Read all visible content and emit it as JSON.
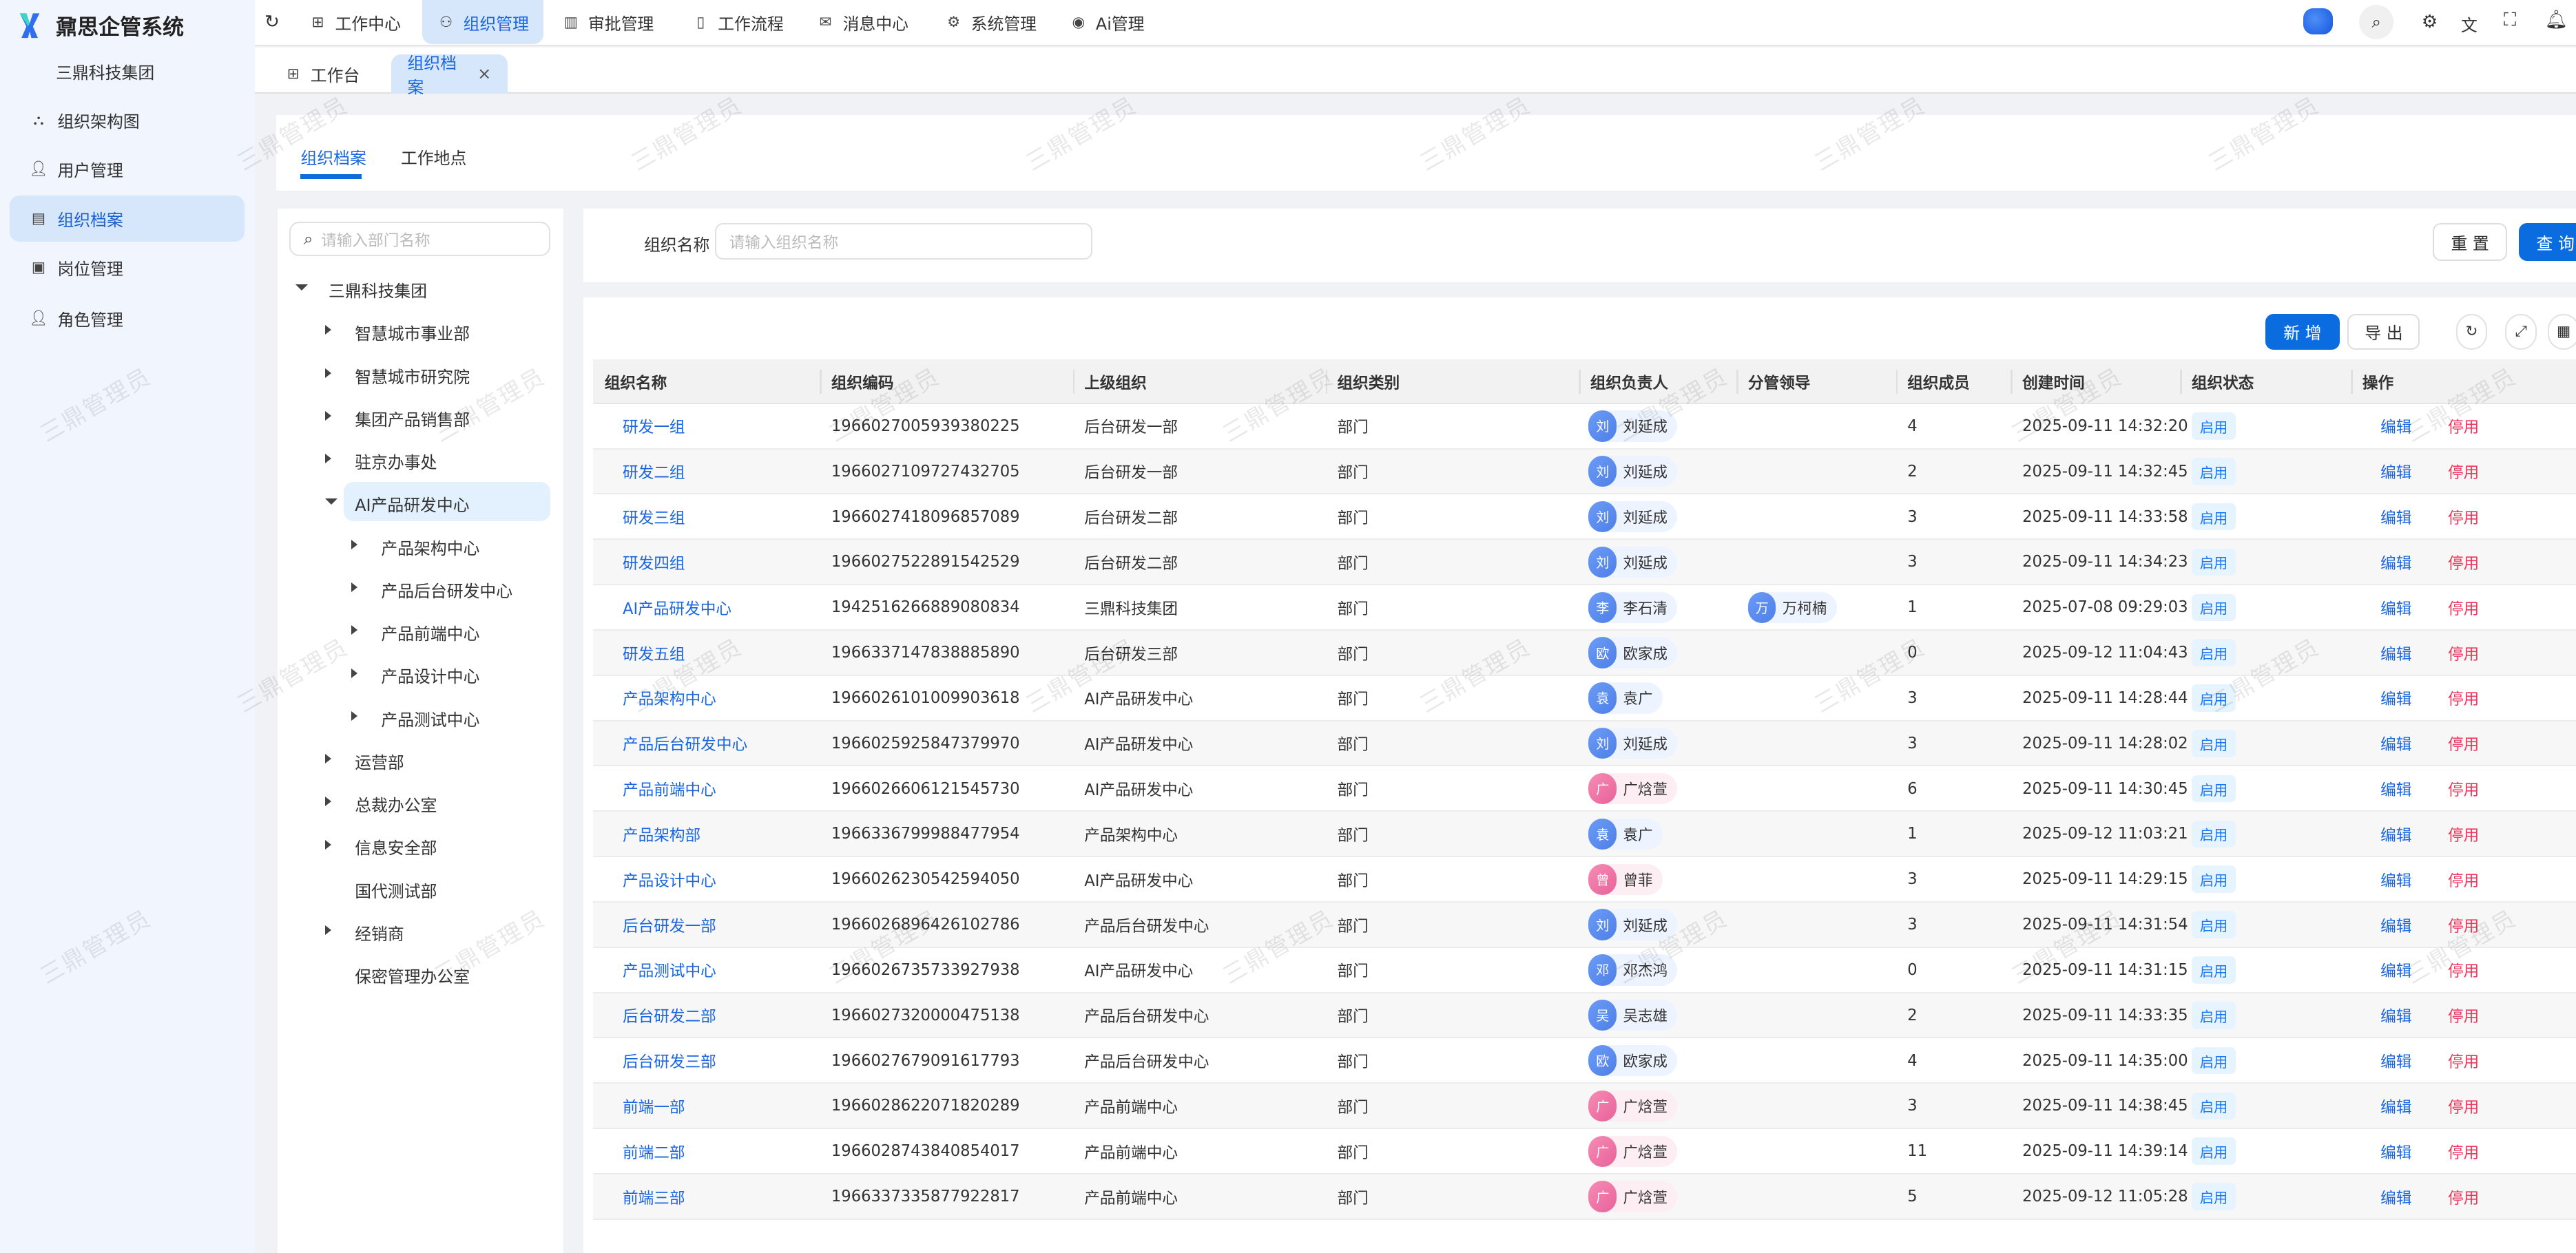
{
  "app": {
    "title": "鼐思企管系统",
    "org": "三鼎科技集团"
  },
  "sidebar": {
    "items": [
      {
        "label": "组织架构图",
        "icon": "org-chart-icon",
        "active": false
      },
      {
        "label": "用户管理",
        "icon": "user-icon",
        "active": false
      },
      {
        "label": "组织档案",
        "icon": "file-icon",
        "active": true
      },
      {
        "label": "岗位管理",
        "icon": "badge-icon",
        "active": false
      },
      {
        "label": "角色管理",
        "icon": "user-icon",
        "active": false
      }
    ]
  },
  "topnav": {
    "items": [
      {
        "label": "工作中心",
        "icon": "grid-icon"
      },
      {
        "label": "组织管理",
        "icon": "user-group-icon",
        "active": true
      },
      {
        "label": "审批管理",
        "icon": "calendar-check-icon"
      },
      {
        "label": "工作流程",
        "icon": "document-icon"
      },
      {
        "label": "消息中心",
        "icon": "mail-icon"
      },
      {
        "label": "系统管理",
        "icon": "gear-icon"
      },
      {
        "label": "Ai管理",
        "icon": "ai-icon"
      }
    ]
  },
  "tabs": [
    {
      "label": "工作台"
    },
    {
      "label": "组织档案",
      "active": true,
      "close": "×"
    }
  ],
  "subtabs": [
    "组织档案",
    "工作地点"
  ],
  "tree": {
    "search_placeholder": "请输入部门名称",
    "nodes": [
      {
        "label": "三鼎科技集团",
        "level": 0,
        "state": "open"
      },
      {
        "label": "智慧城市事业部",
        "level": 1,
        "state": "closed"
      },
      {
        "label": "智慧城市研究院",
        "level": 1,
        "state": "closed"
      },
      {
        "label": "集团产品销售部",
        "level": 1,
        "state": "closed"
      },
      {
        "label": "驻京办事处",
        "level": 1,
        "state": "closed"
      },
      {
        "label": "AI产品研发中心",
        "level": 1,
        "state": "open",
        "selected": true
      },
      {
        "label": "产品架构中心",
        "level": 2,
        "state": "closed"
      },
      {
        "label": "产品后台研发中心",
        "level": 2,
        "state": "closed"
      },
      {
        "label": "产品前端中心",
        "level": 2,
        "state": "closed"
      },
      {
        "label": "产品设计中心",
        "level": 2,
        "state": "closed"
      },
      {
        "label": "产品测试中心",
        "level": 2,
        "state": "closed"
      },
      {
        "label": "运营部",
        "level": 1,
        "state": "closed"
      },
      {
        "label": "总裁办公室",
        "level": 1,
        "state": "closed"
      },
      {
        "label": "信息安全部",
        "level": 1,
        "state": "closed"
      },
      {
        "label": "国代测试部",
        "level": 1,
        "state": "leaf"
      },
      {
        "label": "经销商",
        "level": 1,
        "state": "closed"
      },
      {
        "label": "保密管理办公室",
        "level": 1,
        "state": "leaf"
      }
    ]
  },
  "filter": {
    "label": "组织名称",
    "placeholder": "请输入组织名称",
    "reset": "重 置",
    "query": "查 询"
  },
  "toolbar": {
    "add": "新 增",
    "export": "导 出"
  },
  "table": {
    "columns": [
      "组织名称",
      "组织编码",
      "上级组织",
      "组织类别",
      "组织负责人",
      "分管领导",
      "组织成员",
      "创建时间",
      "组织状态",
      "操作"
    ],
    "actions": {
      "edit": "编辑",
      "disable": "停用"
    },
    "rows": [
      {
        "name": "研发一组",
        "code": "1966027005939380225",
        "parent": "后台研发一部",
        "type": "部门",
        "leader": {
          "initial": "刘",
          "name": "刘延成",
          "color": "blue"
        },
        "supervisor": null,
        "members": "4",
        "created": "2025-09-11 14:32:20",
        "status": "启用"
      },
      {
        "name": "研发二组",
        "code": "1966027109727432705",
        "parent": "后台研发一部",
        "type": "部门",
        "leader": {
          "initial": "刘",
          "name": "刘延成",
          "color": "blue"
        },
        "supervisor": null,
        "members": "2",
        "created": "2025-09-11 14:32:45",
        "status": "启用"
      },
      {
        "name": "研发三组",
        "code": "1966027418096857089",
        "parent": "后台研发二部",
        "type": "部门",
        "leader": {
          "initial": "刘",
          "name": "刘延成",
          "color": "blue"
        },
        "supervisor": null,
        "members": "3",
        "created": "2025-09-11 14:33:58",
        "status": "启用"
      },
      {
        "name": "研发四组",
        "code": "1966027522891542529",
        "parent": "后台研发二部",
        "type": "部门",
        "leader": {
          "initial": "刘",
          "name": "刘延成",
          "color": "blue"
        },
        "supervisor": null,
        "members": "3",
        "created": "2025-09-11 14:34:23",
        "status": "启用"
      },
      {
        "name": "AI产品研发中心",
        "code": "1942516266889080834",
        "parent": "三鼎科技集团",
        "type": "部门",
        "leader": {
          "initial": "李",
          "name": "李石清",
          "color": "blue"
        },
        "supervisor": {
          "initial": "万",
          "name": "万柯楠",
          "color": "blue"
        },
        "members": "1",
        "created": "2025-07-08 09:29:03",
        "status": "启用"
      },
      {
        "name": "研发五组",
        "code": "1966337147838885890",
        "parent": "后台研发三部",
        "type": "部门",
        "leader": {
          "initial": "欧",
          "name": "欧家成",
          "color": "blue"
        },
        "supervisor": null,
        "members": "0",
        "created": "2025-09-12 11:04:43",
        "status": "启用"
      },
      {
        "name": "产品架构中心",
        "code": "1966026101009903618",
        "parent": "AI产品研发中心",
        "type": "部门",
        "leader": {
          "initial": "袁",
          "name": "袁广",
          "color": "blue"
        },
        "supervisor": null,
        "members": "3",
        "created": "2025-09-11 14:28:44",
        "status": "启用"
      },
      {
        "name": "产品后台研发中心",
        "code": "1966025925847379970",
        "parent": "AI产品研发中心",
        "type": "部门",
        "leader": {
          "initial": "刘",
          "name": "刘延成",
          "color": "blue"
        },
        "supervisor": null,
        "members": "3",
        "created": "2025-09-11 14:28:02",
        "status": "启用"
      },
      {
        "name": "产品前端中心",
        "code": "1966026606121545730",
        "parent": "AI产品研发中心",
        "type": "部门",
        "leader": {
          "initial": "广",
          "name": "广焓萱",
          "color": "pink"
        },
        "supervisor": null,
        "members": "6",
        "created": "2025-09-11 14:30:45",
        "status": "启用"
      },
      {
        "name": "产品架构部",
        "code": "1966336799988477954",
        "parent": "产品架构中心",
        "type": "部门",
        "leader": {
          "initial": "袁",
          "name": "袁广",
          "color": "blue"
        },
        "supervisor": null,
        "members": "1",
        "created": "2025-09-12 11:03:21",
        "status": "启用"
      },
      {
        "name": "产品设计中心",
        "code": "1966026230542594050",
        "parent": "AI产品研发中心",
        "type": "部门",
        "leader": {
          "initial": "曾",
          "name": "曾菲",
          "color": "pink"
        },
        "supervisor": null,
        "members": "3",
        "created": "2025-09-11 14:29:15",
        "status": "启用"
      },
      {
        "name": "后台研发一部",
        "code": "1966026896426102786",
        "parent": "产品后台研发中心",
        "type": "部门",
        "leader": {
          "initial": "刘",
          "name": "刘延成",
          "color": "blue"
        },
        "supervisor": null,
        "members": "3",
        "created": "2025-09-11 14:31:54",
        "status": "启用"
      },
      {
        "name": "产品测试中心",
        "code": "1966026735733927938",
        "parent": "AI产品研发中心",
        "type": "部门",
        "leader": {
          "initial": "邓",
          "name": "邓杰鸿",
          "color": "blue"
        },
        "supervisor": null,
        "members": "0",
        "created": "2025-09-11 14:31:15",
        "status": "启用"
      },
      {
        "name": "后台研发二部",
        "code": "1966027320000475138",
        "parent": "产品后台研发中心",
        "type": "部门",
        "leader": {
          "initial": "吴",
          "name": "吴志雄",
          "color": "blue"
        },
        "supervisor": null,
        "members": "2",
        "created": "2025-09-11 14:33:35",
        "status": "启用"
      },
      {
        "name": "后台研发三部",
        "code": "1966027679091617793",
        "parent": "产品后台研发中心",
        "type": "部门",
        "leader": {
          "initial": "欧",
          "name": "欧家成",
          "color": "blue"
        },
        "supervisor": null,
        "members": "4",
        "created": "2025-09-11 14:35:00",
        "status": "启用"
      },
      {
        "name": "前端一部",
        "code": "1966028622071820289",
        "parent": "产品前端中心",
        "type": "部门",
        "leader": {
          "initial": "广",
          "name": "广焓萱",
          "color": "pink"
        },
        "supervisor": null,
        "members": "3",
        "created": "2025-09-11 14:38:45",
        "status": "启用"
      },
      {
        "name": "前端二部",
        "code": "1966028743840854017",
        "parent": "产品前端中心",
        "type": "部门",
        "leader": {
          "initial": "广",
          "name": "广焓萱",
          "color": "pink"
        },
        "supervisor": null,
        "members": "11",
        "created": "2025-09-11 14:39:14",
        "status": "启用"
      },
      {
        "name": "前端三部",
        "code": "1966337335877922817",
        "parent": "产品前端中心",
        "type": "部门",
        "leader": {
          "initial": "广",
          "name": "广焓萱",
          "color": "pink"
        },
        "supervisor": null,
        "members": "5",
        "created": "2025-09-12 11:05:28",
        "status": "启用"
      }
    ]
  },
  "watermark": "三鼎管理员",
  "colors": {
    "primary": "#0a6cdf",
    "link": "#1a66e0",
    "danger": "#f0365c",
    "active_bg": "#d6e6fb",
    "sidebar_bg": "#f1f6fe"
  }
}
